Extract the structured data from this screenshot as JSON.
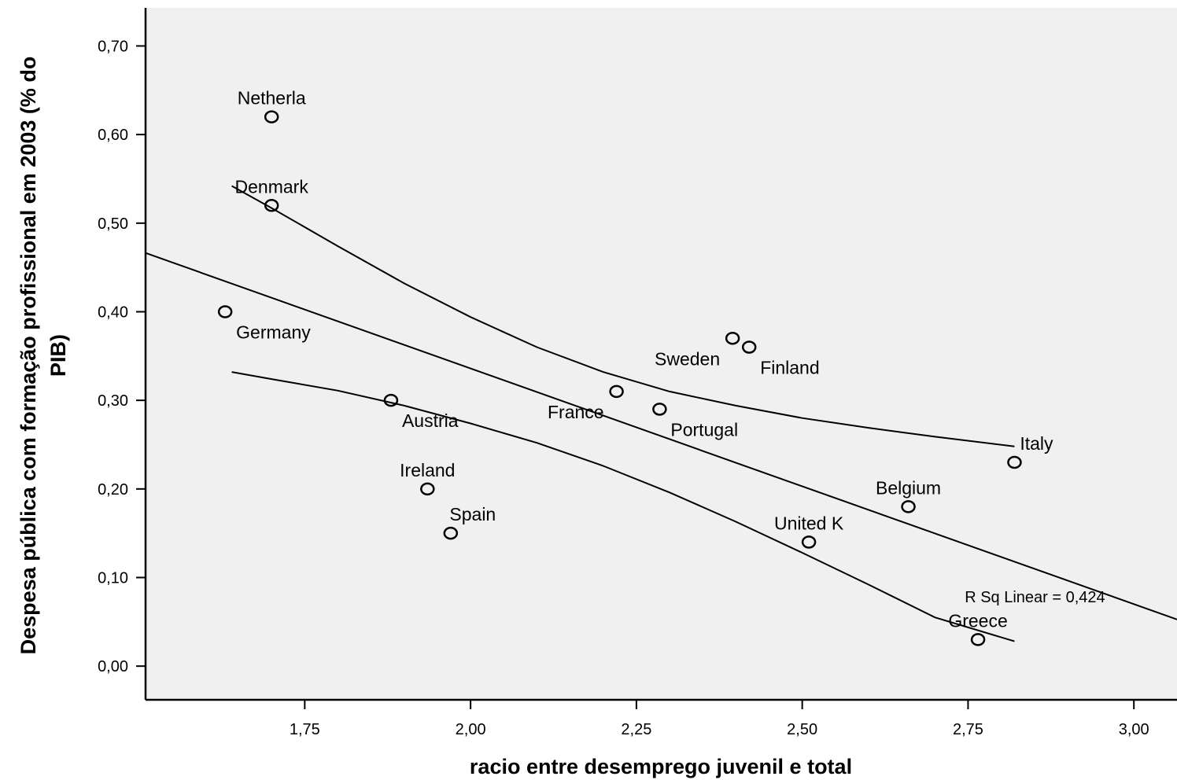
{
  "chart_data": {
    "type": "scatter",
    "title": "",
    "xlabel": "racio entre desemprego juvenil e total",
    "ylabel_lines": [
      "Despesa pública com formação profissional em 2003 (% do",
      "PIB)"
    ],
    "xlim": [
      1.51,
      3.065
    ],
    "ylim": [
      -0.038,
      0.743
    ],
    "x_ticks": [
      1.75,
      2.0,
      2.25,
      2.5,
      2.75,
      3.0
    ],
    "x_tick_labels": [
      "1,75",
      "2,00",
      "2,25",
      "2,50",
      "2,75",
      "3,00"
    ],
    "y_ticks": [
      0.0,
      0.1,
      0.2,
      0.3,
      0.4,
      0.5,
      0.6,
      0.7
    ],
    "y_tick_labels": [
      "0,00",
      "0,10",
      "0,20",
      "0,30",
      "0,40",
      "0,50",
      "0,60",
      "0,70"
    ],
    "grid": false,
    "background_color": "#f0f0f0",
    "points": [
      {
        "label": "Netherla",
        "x": 1.7,
        "y": 0.62,
        "label_pos": "above"
      },
      {
        "label": "Denmark",
        "x": 1.7,
        "y": 0.52,
        "label_pos": "above"
      },
      {
        "label": "Germany",
        "x": 1.63,
        "y": 0.4,
        "label_pos": "below-right"
      },
      {
        "label": "Austria",
        "x": 1.88,
        "y": 0.3,
        "label_pos": "below-right"
      },
      {
        "label": "Ireland",
        "x": 1.935,
        "y": 0.2,
        "label_pos": "above"
      },
      {
        "label": "Spain",
        "x": 1.97,
        "y": 0.15,
        "label_pos": "above-right"
      },
      {
        "label": "France",
        "x": 2.22,
        "y": 0.31,
        "label_pos": "below-left"
      },
      {
        "label": "Portugal",
        "x": 2.285,
        "y": 0.29,
        "label_pos": "below-right"
      },
      {
        "label": "Sweden",
        "x": 2.395,
        "y": 0.37,
        "label_pos": "below-left"
      },
      {
        "label": "Finland",
        "x": 2.42,
        "y": 0.36,
        "label_pos": "below-right"
      },
      {
        "label": "United K",
        "x": 2.51,
        "y": 0.14,
        "label_pos": "above"
      },
      {
        "label": "Belgium",
        "x": 2.66,
        "y": 0.18,
        "label_pos": "above"
      },
      {
        "label": "Greece",
        "x": 2.765,
        "y": 0.03,
        "label_pos": "above"
      },
      {
        "label": "Italy",
        "x": 2.82,
        "y": 0.23,
        "label_pos": "above-right"
      }
    ],
    "fit_line": {
      "intercept": 0.868,
      "slope": -0.266,
      "x_range": [
        1.51,
        3.065
      ]
    },
    "confidence_band": {
      "upper": [
        [
          1.64,
          0.542
        ],
        [
          1.7,
          0.517
        ],
        [
          1.8,
          0.474
        ],
        [
          1.9,
          0.432
        ],
        [
          2.0,
          0.394
        ],
        [
          2.1,
          0.36
        ],
        [
          2.2,
          0.332
        ],
        [
          2.3,
          0.31
        ],
        [
          2.4,
          0.294
        ],
        [
          2.5,
          0.28
        ],
        [
          2.6,
          0.269
        ],
        [
          2.7,
          0.259
        ],
        [
          2.82,
          0.248
        ]
      ],
      "lower": [
        [
          1.64,
          0.332
        ],
        [
          1.7,
          0.324
        ],
        [
          1.8,
          0.311
        ],
        [
          1.9,
          0.294
        ],
        [
          2.0,
          0.274
        ],
        [
          2.1,
          0.252
        ],
        [
          2.2,
          0.226
        ],
        [
          2.3,
          0.196
        ],
        [
          2.4,
          0.163
        ],
        [
          2.5,
          0.128
        ],
        [
          2.6,
          0.092
        ],
        [
          2.7,
          0.055
        ],
        [
          2.82,
          0.028
        ]
      ]
    },
    "annotation": {
      "text": "R Sq Linear = 0,424",
      "x": 2.745,
      "y": 0.072
    }
  }
}
